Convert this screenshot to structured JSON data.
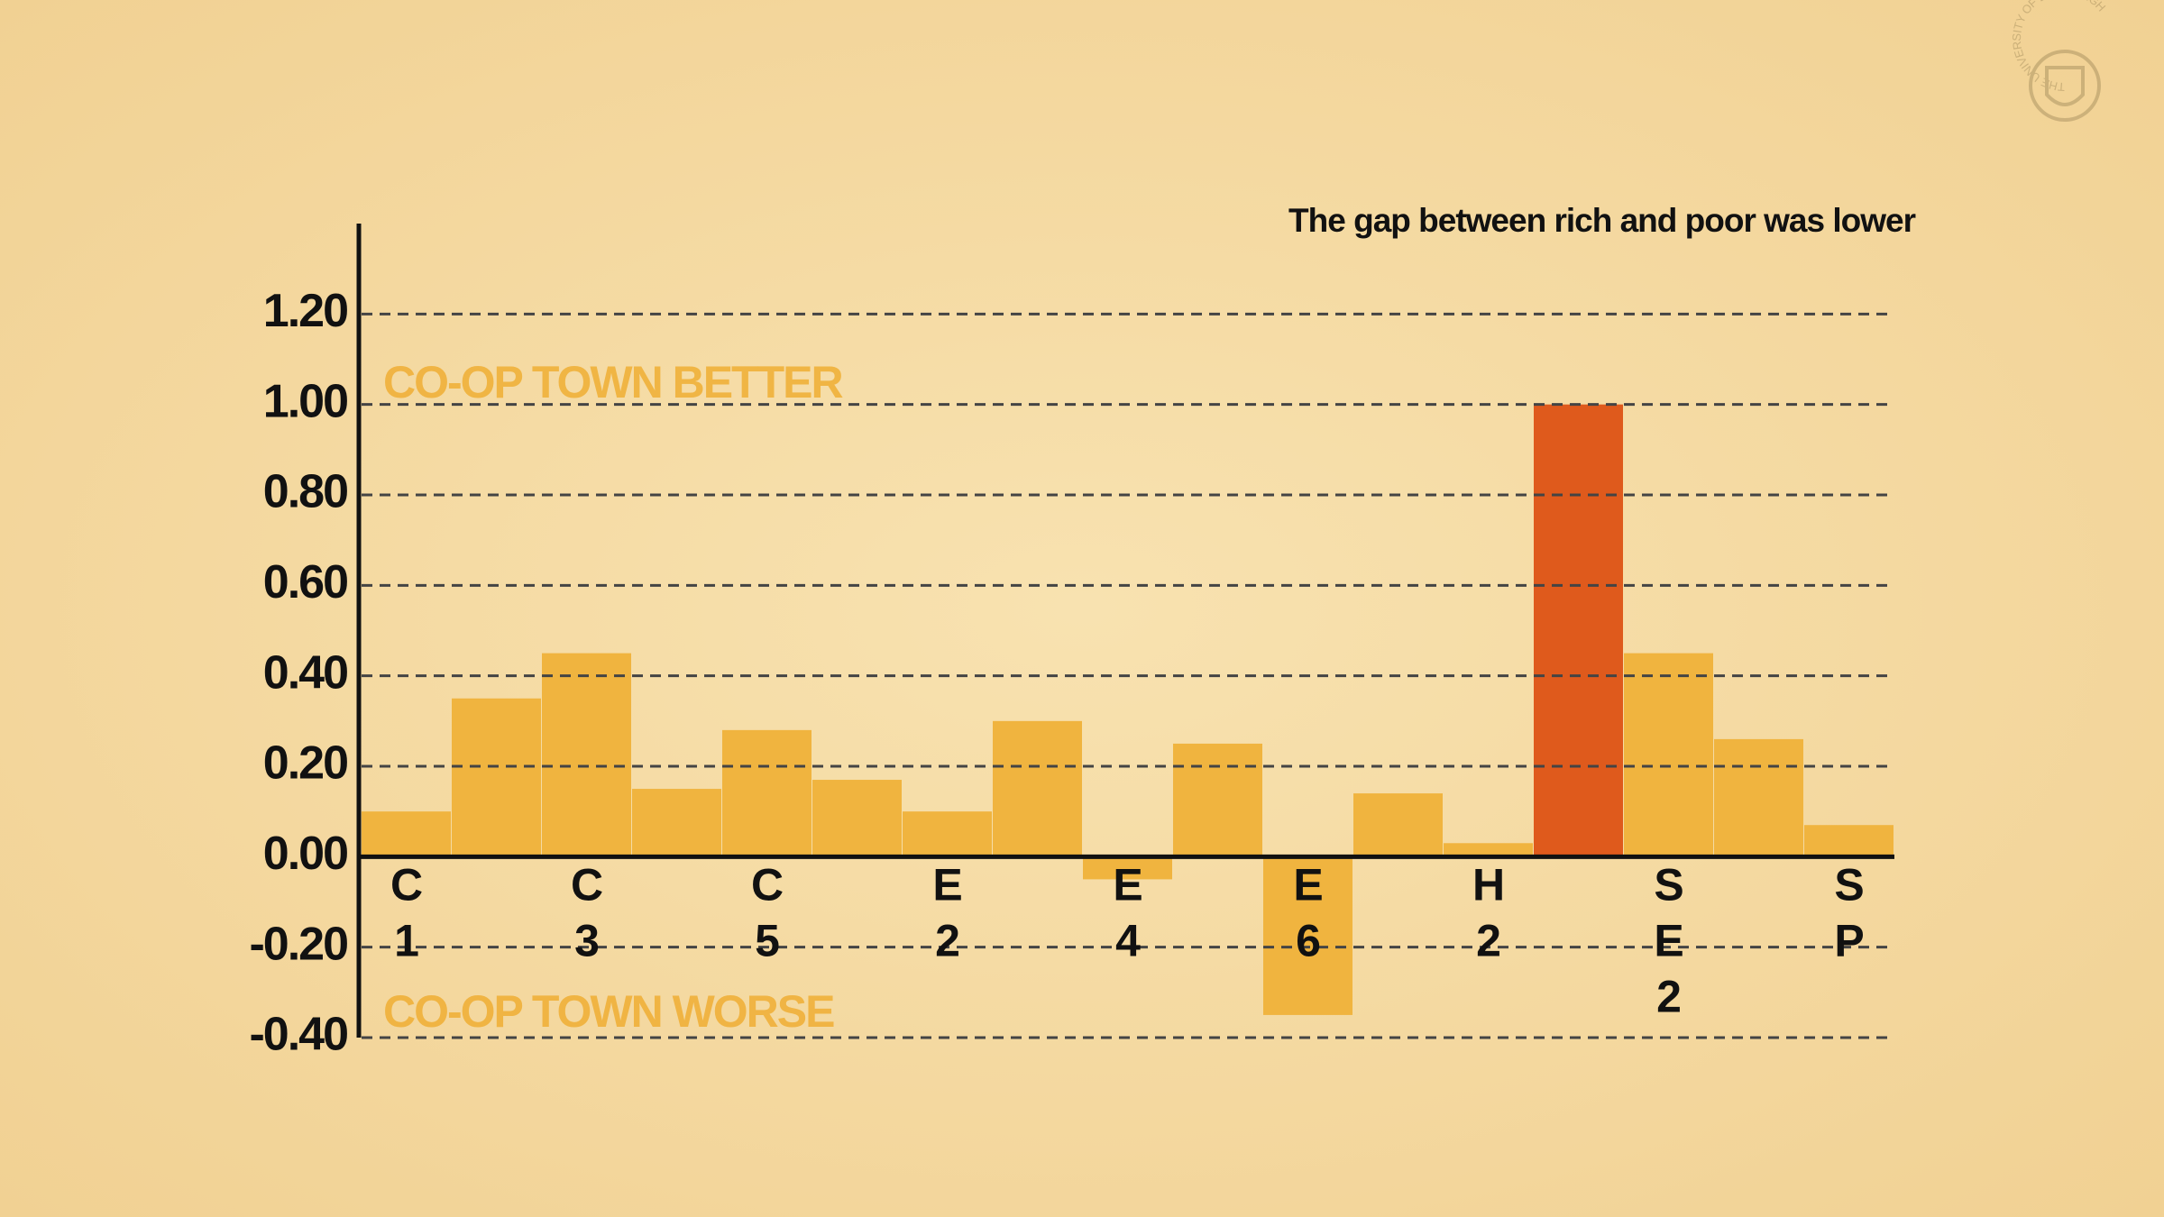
{
  "chart_data": {
    "type": "bar",
    "title": "The gap between rich and poor was lower",
    "annotations": [
      "CO-OP TOWN BETTER",
      "CO-OP TOWN WORSE"
    ],
    "logo_text": "THE UNIVERSITY OF EDINBURGH",
    "categories": [
      "C1",
      null,
      "C3",
      null,
      "C5",
      null,
      "E2",
      null,
      "E4",
      null,
      "E6",
      null,
      "H2",
      null,
      "SE2",
      null,
      "SP"
    ],
    "values": [
      0.1,
      0.35,
      0.45,
      0.15,
      0.28,
      0.17,
      0.1,
      0.3,
      -0.05,
      0.25,
      -0.35,
      0.14,
      0.03,
      1.0,
      0.45,
      0.26,
      0.07
    ],
    "colors": [
      "#f0b43f",
      "#f0b43f",
      "#f0b43f",
      "#f0b43f",
      "#f0b43f",
      "#f0b43f",
      "#f0b43f",
      "#f0b43f",
      "#f0b43f",
      "#f0b43f",
      "#f0b43f",
      "#f0b43f",
      "#f0b43f",
      "#df5a1c",
      "#f0b43f",
      "#f0b43f",
      "#f0b43f"
    ],
    "ylim": [
      -0.4,
      1.4
    ],
    "yticks": [
      {
        "value": -0.4,
        "label": "-0.40"
      },
      {
        "value": -0.2,
        "label": "-0.20"
      },
      {
        "value": 0,
        "label": "0.00"
      },
      {
        "value": 0.2,
        "label": "0.20"
      },
      {
        "value": 0.4,
        "label": "0.40"
      },
      {
        "value": 0.6,
        "label": "0.60"
      },
      {
        "value": 0.8,
        "label": "0.80"
      },
      {
        "value": 1.0,
        "label": "1.00"
      },
      {
        "value": 1.2,
        "label": "1.20"
      }
    ],
    "grid": true
  }
}
